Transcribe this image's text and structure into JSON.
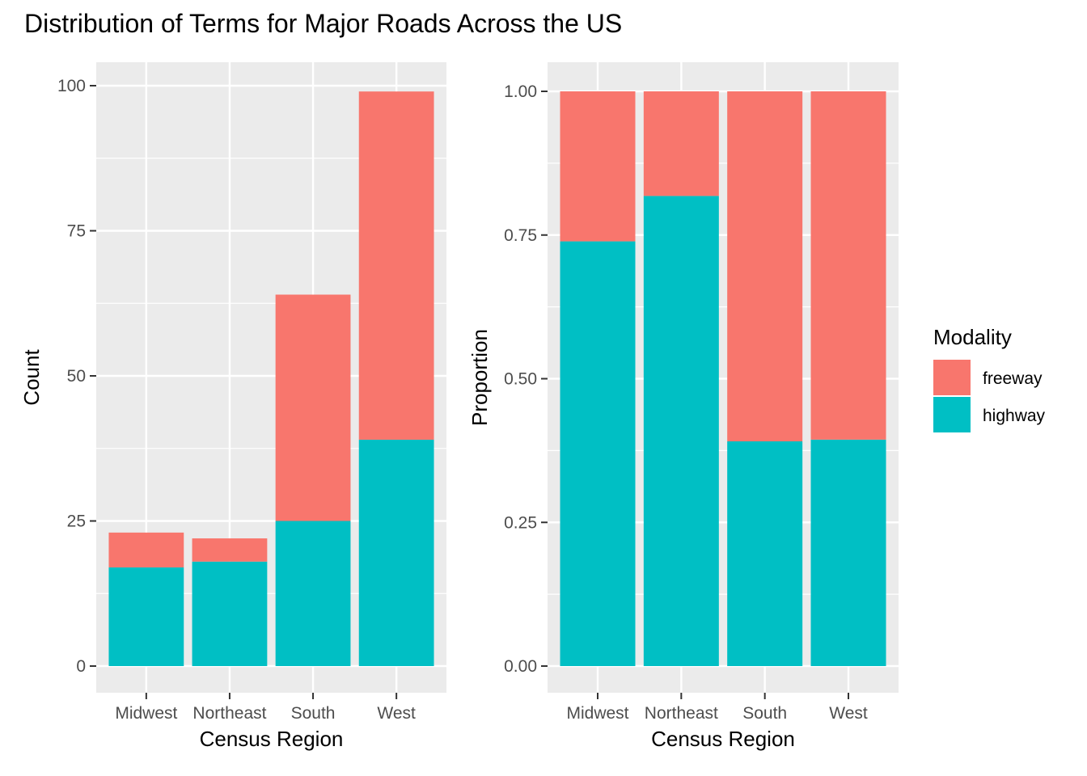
{
  "title": "Distribution of Terms for Major Roads Across the US",
  "colors": {
    "freeway": "#F8766D",
    "highway": "#00BFC4",
    "panel_bg": "#EBEBEB",
    "grid": "#FFFFFF"
  },
  "legend": {
    "title": "Modality",
    "items": [
      {
        "label": "freeway",
        "color": "#F8766D"
      },
      {
        "label": "highway",
        "color": "#00BFC4"
      }
    ],
    "placement": "right"
  },
  "chart_data": [
    {
      "type": "bar",
      "stacked": true,
      "xlabel": "Census Region",
      "ylabel": "Count",
      "categories": [
        "Midwest",
        "Northeast",
        "South",
        "West"
      ],
      "ylim": [
        0,
        100
      ],
      "yticks": [
        "0",
        "25",
        "50",
        "75",
        "100"
      ],
      "series": [
        {
          "name": "highway",
          "values": [
            17,
            18,
            25,
            39
          ]
        },
        {
          "name": "freeway",
          "values": [
            6,
            4,
            39,
            60
          ]
        }
      ]
    },
    {
      "type": "bar",
      "stacked": true,
      "xlabel": "Census Region",
      "ylabel": "Proportion",
      "categories": [
        "Midwest",
        "Northeast",
        "South",
        "West"
      ],
      "ylim": [
        0,
        1
      ],
      "yticks": [
        "0.00",
        "0.25",
        "0.50",
        "0.75",
        "1.00"
      ],
      "series": [
        {
          "name": "highway",
          "values": [
            0.739,
            0.818,
            0.391,
            0.394
          ]
        },
        {
          "name": "freeway",
          "values": [
            0.261,
            0.182,
            0.609,
            0.606
          ]
        }
      ]
    }
  ]
}
